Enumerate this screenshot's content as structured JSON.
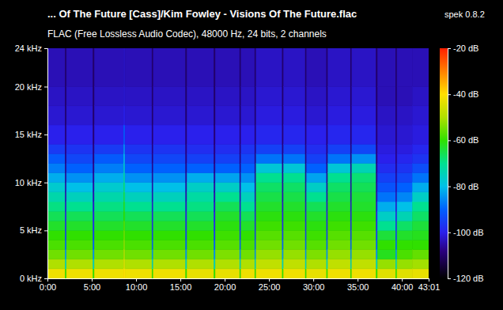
{
  "chart_data": {
    "type": "heatmap",
    "title": "... Of The Future [Cass]/Kim Fowley - Visions Of The Future.flac",
    "subtitle": "FLAC (Free Lossless Audio Codec), 48000 Hz, 24 bits, 2 channels",
    "annotations": [
      "spek 0.8.2"
    ],
    "xlim": [
      0,
      43.0167
    ],
    "xticks": [
      {
        "value": 0,
        "label": "0:00"
      },
      {
        "value": 5,
        "label": "5:00"
      },
      {
        "value": 10,
        "label": "10:00"
      },
      {
        "value": 15,
        "label": "15:00"
      },
      {
        "value": 20,
        "label": "20:00"
      },
      {
        "value": 25,
        "label": "25:00"
      },
      {
        "value": 30,
        "label": "30:00"
      },
      {
        "value": 35,
        "label": "35:00"
      },
      {
        "value": 40,
        "label": "40:00"
      },
      {
        "value": 43.0167,
        "label": "43:01"
      }
    ],
    "ylim": [
      0,
      24
    ],
    "yticks": [
      {
        "value": 0,
        "label": "0 kHz"
      },
      {
        "value": 5,
        "label": "5 kHz"
      },
      {
        "value": 10,
        "label": "10 kHz"
      },
      {
        "value": 15,
        "label": "15 kHz"
      },
      {
        "value": 20,
        "label": "20 kHz"
      },
      {
        "value": 24,
        "label": "24 kHz"
      }
    ],
    "x_edges": [
      0,
      2,
      2.15,
      5.15,
      5.3,
      8.6,
      8.75,
      11.8,
      11.95,
      15.6,
      15.75,
      18.8,
      18.95,
      21.7,
      21.85,
      23.4,
      23.55,
      26.5,
      26.65,
      29.1,
      29.25,
      31.5,
      31.65,
      34.2,
      34.35,
      37.1,
      37.25,
      39.3,
      39.45,
      41.2,
      43.0167
    ],
    "y_edges": [
      0,
      1,
      2,
      3,
      4,
      5,
      6,
      7,
      8,
      9,
      10,
      11,
      12,
      13,
      14,
      16,
      18,
      20,
      24
    ],
    "cells": [
      [
        -42,
        -50,
        -55,
        -58,
        -60,
        -63,
        -66,
        -69,
        -73,
        -77,
        -82,
        -87,
        -91,
        -96,
        -100,
        -102,
        -103,
        -104
      ],
      [
        -60,
        -75,
        -85,
        -90,
        -95,
        -98,
        -100,
        -102,
        -104,
        -105,
        -106,
        -107,
        -108,
        -108,
        -109,
        -110,
        -110,
        -110
      ],
      [
        -42,
        -50,
        -55,
        -58,
        -60,
        -63,
        -66,
        -70,
        -75,
        -80,
        -85,
        -90,
        -94,
        -97,
        -100,
        -102,
        -103,
        -104
      ],
      [
        -60,
        -75,
        -85,
        -90,
        -95,
        -98,
        -100,
        -102,
        -104,
        -105,
        -106,
        -107,
        -108,
        -108,
        -109,
        -110,
        -110,
        -110
      ],
      [
        -42,
        -50,
        -55,
        -58,
        -60,
        -63,
        -66,
        -69,
        -73,
        -77,
        -82,
        -87,
        -91,
        -96,
        -100,
        -102,
        -103,
        -104
      ],
      [
        -40,
        -45,
        -50,
        -53,
        -55,
        -57,
        -60,
        -62,
        -65,
        -68,
        -72,
        -76,
        -80,
        -84,
        -90,
        -100,
        -102,
        -103
      ],
      [
        -42,
        -50,
        -55,
        -58,
        -60,
        -63,
        -66,
        -70,
        -75,
        -80,
        -85,
        -90,
        -94,
        -97,
        -100,
        -102,
        -103,
        -104
      ],
      [
        -60,
        -75,
        -85,
        -90,
        -95,
        -98,
        -100,
        -102,
        -104,
        -105,
        -106,
        -107,
        -108,
        -108,
        -109,
        -110,
        -110,
        -110
      ],
      [
        -42,
        -50,
        -55,
        -58,
        -60,
        -63,
        -66,
        -70,
        -75,
        -80,
        -85,
        -90,
        -94,
        -97,
        -100,
        -102,
        -103,
        -104
      ],
      [
        -60,
        -75,
        -85,
        -90,
        -95,
        -98,
        -100,
        -102,
        -104,
        -105,
        -106,
        -107,
        -108,
        -108,
        -109,
        -110,
        -110,
        -110
      ],
      [
        -43,
        -50,
        -55,
        -58,
        -60,
        -63,
        -66,
        -69,
        -72,
        -76,
        -82,
        -90,
        -95,
        -98,
        -100,
        -102,
        -103,
        -104
      ],
      [
        -60,
        -75,
        -85,
        -90,
        -95,
        -98,
        -100,
        -102,
        -104,
        -105,
        -106,
        -107,
        -108,
        -108,
        -109,
        -110,
        -110,
        -110
      ],
      [
        -43,
        -50,
        -54,
        -57,
        -59,
        -61,
        -63,
        -66,
        -70,
        -76,
        -83,
        -90,
        -95,
        -98,
        -100,
        -102,
        -103,
        -104
      ],
      [
        -60,
        -75,
        -85,
        -90,
        -95,
        -98,
        -100,
        -102,
        -104,
        -105,
        -106,
        -107,
        -108,
        -108,
        -109,
        -110,
        -110,
        -110
      ],
      [
        -42,
        -50,
        -55,
        -58,
        -60,
        -63,
        -66,
        -70,
        -75,
        -80,
        -85,
        -90,
        -94,
        -97,
        -100,
        -102,
        -103,
        -104
      ],
      [
        -60,
        -75,
        -85,
        -90,
        -95,
        -98,
        -100,
        -102,
        -104,
        -105,
        -106,
        -107,
        -108,
        -108,
        -109,
        -110,
        -110,
        -110
      ],
      [
        -42,
        -48,
        -52,
        -55,
        -57,
        -59,
        -61,
        -63,
        -65,
        -67,
        -70,
        -78,
        -88,
        -95,
        -99,
        -101,
        -102,
        -103
      ],
      [
        -60,
        -75,
        -85,
        -90,
        -95,
        -98,
        -100,
        -102,
        -104,
        -105,
        -106,
        -107,
        -108,
        -108,
        -109,
        -110,
        -110,
        -110
      ],
      [
        -42,
        -48,
        -52,
        -55,
        -57,
        -59,
        -61,
        -63,
        -65,
        -67,
        -70,
        -78,
        -88,
        -95,
        -99,
        -101,
        -102,
        -103
      ],
      [
        -60,
        -75,
        -85,
        -90,
        -95,
        -98,
        -100,
        -102,
        -104,
        -105,
        -106,
        -107,
        -108,
        -108,
        -109,
        -110,
        -110,
        -110
      ],
      [
        -43,
        -50,
        -54,
        -57,
        -59,
        -61,
        -63,
        -66,
        -70,
        -76,
        -83,
        -90,
        -95,
        -98,
        -100,
        -102,
        -103,
        -104
      ],
      [
        -60,
        -75,
        -85,
        -90,
        -95,
        -98,
        -100,
        -102,
        -104,
        -105,
        -106,
        -107,
        -108,
        -108,
        -109,
        -110,
        -110,
        -110
      ],
      [
        -42,
        -48,
        -52,
        -55,
        -57,
        -59,
        -61,
        -63,
        -65,
        -67,
        -70,
        -78,
        -88,
        -95,
        -99,
        -101,
        -102,
        -103
      ],
      [
        -60,
        -75,
        -85,
        -90,
        -95,
        -98,
        -100,
        -102,
        -104,
        -105,
        -106,
        -107,
        -108,
        -108,
        -109,
        -110,
        -110,
        -110
      ],
      [
        -42,
        -48,
        -52,
        -55,
        -57,
        -59,
        -61,
        -63,
        -64,
        -66,
        -68,
        -74,
        -85,
        -94,
        -99,
        -101,
        -102,
        -103
      ],
      [
        -60,
        -75,
        -85,
        -90,
        -95,
        -98,
        -100,
        -102,
        -104,
        -105,
        -106,
        -107,
        -108,
        -108,
        -109,
        -110,
        -110,
        -110
      ],
      [
        -44,
        -52,
        -62,
        -60,
        -64,
        -70,
        -76,
        -82,
        -88,
        -92,
        -95,
        -98,
        -100,
        -101,
        -102,
        -103,
        -104,
        -104
      ],
      [
        -60,
        -75,
        -85,
        -90,
        -95,
        -98,
        -100,
        -102,
        -104,
        -105,
        -106,
        -107,
        -108,
        -108,
        -109,
        -110,
        -110,
        -110
      ],
      [
        -44,
        -52,
        -58,
        -60,
        -63,
        -67,
        -74,
        -80,
        -86,
        -90,
        -94,
        -97,
        -99,
        -101,
        -102,
        -103,
        -104,
        -104
      ],
      [
        -43,
        -51,
        -56,
        -60,
        -62,
        -64,
        -67,
        -70,
        -76,
        -82,
        -88,
        -93,
        -97,
        -99,
        -101,
        -102,
        -103,
        -104
      ]
    ],
    "colorbar": {
      "range": [
        -120,
        -20
      ],
      "ticks": [
        {
          "value": -20,
          "label": "-20 dB"
        },
        {
          "value": -40,
          "label": "-40 dB"
        },
        {
          "value": -60,
          "label": "-60 dB"
        },
        {
          "value": -80,
          "label": "-80 dB"
        },
        {
          "value": -100,
          "label": "-100 dB"
        },
        {
          "value": -120,
          "label": "-120 dB"
        }
      ]
    }
  }
}
